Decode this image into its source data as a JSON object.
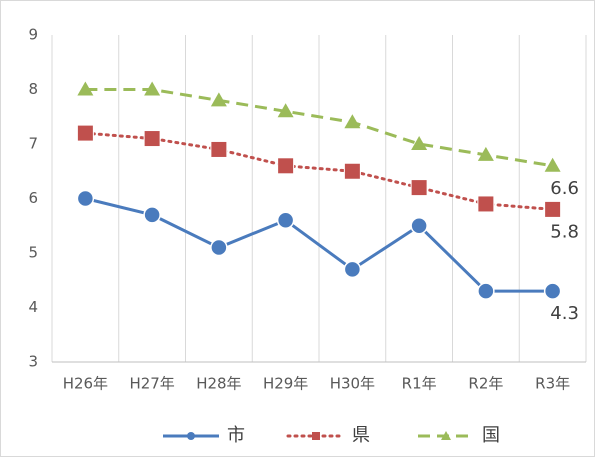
{
  "chart_data": {
    "type": "line",
    "categories": [
      "H26年",
      "H27年",
      "H28年",
      "H29年",
      "H30年",
      "R1年",
      "R2年",
      "R3年"
    ],
    "series": [
      {
        "name": "市",
        "color": "#4a7bbd",
        "dash": "solid",
        "marker": "circle",
        "values": [
          6.0,
          5.7,
          5.1,
          5.6,
          4.7,
          5.5,
          4.3,
          4.3
        ]
      },
      {
        "name": "県",
        "color": "#c0504d",
        "dash": "dotted",
        "marker": "square",
        "values": [
          7.2,
          7.1,
          6.9,
          6.6,
          6.5,
          6.2,
          5.9,
          5.8
        ]
      },
      {
        "name": "国",
        "color": "#9bbb59",
        "dash": "dashed",
        "marker": "triangle",
        "values": [
          8.0,
          8.0,
          7.8,
          7.6,
          7.4,
          7.0,
          6.8,
          6.6
        ]
      }
    ],
    "data_labels": "last",
    "ylim": [
      3,
      9
    ],
    "yticks": [
      3,
      4,
      5,
      6,
      7,
      8,
      9
    ],
    "grid": "x",
    "legend": "bottom"
  }
}
